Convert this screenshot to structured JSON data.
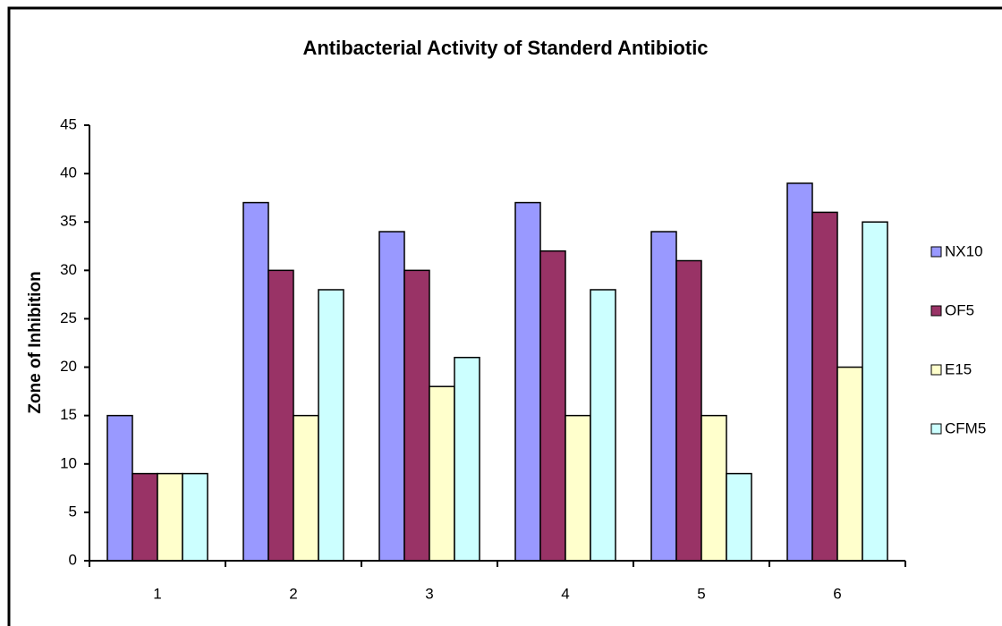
{
  "chart_data": {
    "type": "bar",
    "title": "Antibacterial Activity of Standerd Antibiotic",
    "y_label": "Zone of Inhibition",
    "categories": [
      "1",
      "2",
      "3",
      "4",
      "5",
      "6"
    ],
    "series": [
      {
        "name": "NX10",
        "color": "#9999ff",
        "values": [
          15,
          37,
          34,
          37,
          34,
          39
        ]
      },
      {
        "name": "OF5",
        "color": "#993366",
        "values": [
          9,
          30,
          30,
          32,
          31,
          36
        ]
      },
      {
        "name": "E15",
        "color": "#ffffcc",
        "values": [
          9,
          15,
          18,
          15,
          15,
          20
        ]
      },
      {
        "name": "CFM5",
        "color": "#ccffff",
        "values": [
          9,
          28,
          21,
          28,
          9,
          35
        ]
      }
    ],
    "ylim": [
      0,
      45
    ],
    "yticks": [
      0,
      5,
      10,
      15,
      20,
      25,
      30,
      35,
      40,
      45
    ],
    "legend": "right"
  }
}
